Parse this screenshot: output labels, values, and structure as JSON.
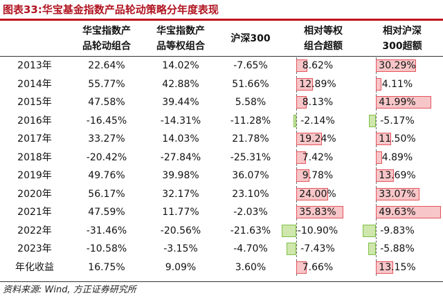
{
  "title": "图表33:华宝基金指数产品轮动策略分年度表现",
  "columns": [
    "华宝指数产\n品轮动组合",
    "华宝指数产\n品等权组合",
    "沪深300",
    "相对等权\n组合超额",
    "相对沪深\n300超额"
  ],
  "rows": [
    {
      "label": "2013年",
      "c1": "22.64%",
      "c2": "14.02%",
      "c3": "-7.65%",
      "e1": "8.62%",
      "e2": "30.29%",
      "v1": 8.62,
      "v2": 30.29
    },
    {
      "label": "2014年",
      "c1": "55.77%",
      "c2": "42.88%",
      "c3": "51.66%",
      "e1": "12.89%",
      "e2": "4.11%",
      "v1": 12.89,
      "v2": 4.11
    },
    {
      "label": "2015年",
      "c1": "47.58%",
      "c2": "39.44%",
      "c3": "5.58%",
      "e1": "8.13%",
      "e2": "41.99%",
      "v1": 8.13,
      "v2": 41.99
    },
    {
      "label": "2016年",
      "c1": "-16.45%",
      "c2": "-14.31%",
      "c3": "-11.28%",
      "e1": "-2.14%",
      "e2": "-5.17%",
      "v1": -2.14,
      "v2": -5.17
    },
    {
      "label": "2017年",
      "c1": "33.27%",
      "c2": "14.03%",
      "c3": "21.78%",
      "e1": "19.24%",
      "e2": "11.50%",
      "v1": 19.24,
      "v2": 11.5
    },
    {
      "label": "2018年",
      "c1": "-20.42%",
      "c2": "-27.84%",
      "c3": "-25.31%",
      "e1": "7.42%",
      "e2": "4.89%",
      "v1": 7.42,
      "v2": 4.89
    },
    {
      "label": "2019年",
      "c1": "49.76%",
      "c2": "39.98%",
      "c3": "36.07%",
      "e1": "9.78%",
      "e2": "13.69%",
      "v1": 9.78,
      "v2": 13.69
    },
    {
      "label": "2020年",
      "c1": "56.17%",
      "c2": "32.17%",
      "c3": "23.10%",
      "e1": "24.00%",
      "e2": "33.07%",
      "v1": 24.0,
      "v2": 33.07
    },
    {
      "label": "2021年",
      "c1": "47.59%",
      "c2": "11.77%",
      "c3": "-2.03%",
      "e1": "35.83%",
      "e2": "49.63%",
      "v1": 35.83,
      "v2": 49.63
    },
    {
      "label": "2022年",
      "c1": "-31.46%",
      "c2": "-20.56%",
      "c3": "-21.63%",
      "e1": "-10.90%",
      "e2": "-9.83%",
      "v1": -10.9,
      "v2": -9.83
    },
    {
      "label": "2023年",
      "c1": "-10.58%",
      "c2": "-3.15%",
      "c3": "-4.70%",
      "e1": "-7.43%",
      "e2": "-5.88%",
      "v1": -7.43,
      "v2": -5.88
    },
    {
      "label": "年化收益",
      "c1": "16.75%",
      "c2": "9.09%",
      "c3": "3.60%",
      "e1": "7.66%",
      "e2": "13.15%",
      "v1": 7.66,
      "v2": 13.15
    }
  ],
  "source": "资料来源: Wind, 方正证券研究所",
  "colors": {
    "title": "#b01420",
    "rule": "#c0101e",
    "pos_fill": "#f7c6c8",
    "pos_border": "#e5535b",
    "neg_fill": "#cfe7ad",
    "neg_border": "#7dbf45"
  }
}
